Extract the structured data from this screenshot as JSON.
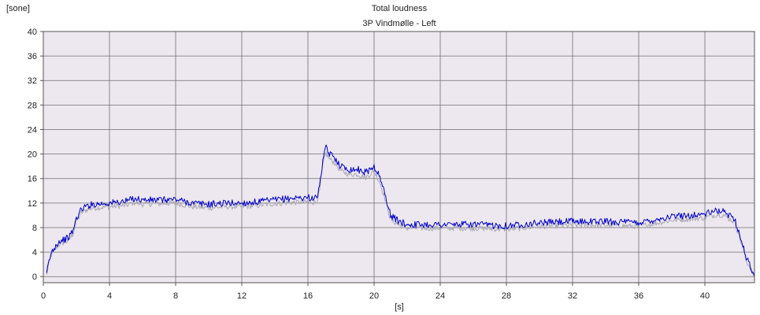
{
  "chart_data": {
    "type": "line",
    "title": "Total loudness",
    "subtitle": "3P Vindmølle - Left",
    "ylabel": "[sone]",
    "xlabel": "[s]",
    "xlim": [
      0,
      43
    ],
    "ylim": [
      -1,
      40
    ],
    "x_ticks": [
      0,
      4,
      8,
      12,
      16,
      20,
      24,
      28,
      32,
      36,
      40
    ],
    "y_ticks": [
      0,
      4,
      8,
      12,
      16,
      20,
      24,
      28,
      32,
      36,
      40
    ],
    "grid": true,
    "plot_background": "#ede8ef",
    "series": [
      {
        "color": "#0000cc",
        "x": [
          0.2,
          0.3,
          0.5,
          0.8,
          1.0,
          1.5,
          1.8,
          2.0,
          2.3,
          2.6,
          3.0,
          4.0,
          5.0,
          5.5,
          6.0,
          7.0,
          8.0,
          9.0,
          10.0,
          11.0,
          12.0,
          13.0,
          14.0,
          15.0,
          16.0,
          16.5,
          16.7,
          16.9,
          17.1,
          17.3,
          17.6,
          18.0,
          18.5,
          19.0,
          19.5,
          20.0,
          20.3,
          20.6,
          21.0,
          21.5,
          22.0,
          23.0,
          24.0,
          26.0,
          28.0,
          30.0,
          32.0,
          34.0,
          36.0,
          38.0,
          39.0,
          40.0,
          40.8,
          41.2,
          41.8,
          42.2,
          42.5,
          42.8,
          43.0
        ],
        "values": [
          0.5,
          2.0,
          4.0,
          5.3,
          5.8,
          6.3,
          7.5,
          9.5,
          11.0,
          11.5,
          11.8,
          12.0,
          12.3,
          12.8,
          12.5,
          12.5,
          12.6,
          12.0,
          11.8,
          12.0,
          12.0,
          12.2,
          12.5,
          12.8,
          12.9,
          12.8,
          14.5,
          19.0,
          21.0,
          20.0,
          19.5,
          18.0,
          17.5,
          17.5,
          17.0,
          18.0,
          16.5,
          14.0,
          10.0,
          9.0,
          8.5,
          8.5,
          8.5,
          8.5,
          8.3,
          8.8,
          9.0,
          9.0,
          8.8,
          9.8,
          10.0,
          10.2,
          10.8,
          10.5,
          9.5,
          6.0,
          3.0,
          1.5,
          0.0
        ]
      },
      {
        "color": "#a8a8b4",
        "x": [
          0.2,
          0.3,
          0.5,
          0.8,
          1.0,
          1.5,
          1.8,
          2.0,
          2.3,
          2.6,
          3.0,
          4.0,
          5.0,
          5.5,
          6.0,
          7.0,
          8.0,
          9.0,
          10.0,
          11.0,
          12.0,
          13.0,
          14.0,
          15.0,
          16.0,
          16.5,
          16.7,
          16.9,
          17.1,
          17.3,
          17.6,
          18.0,
          18.5,
          19.0,
          19.5,
          20.0,
          20.3,
          20.6,
          21.0,
          21.5,
          22.0,
          23.0,
          24.0,
          26.0,
          28.0,
          30.0,
          32.0,
          34.0,
          36.0,
          38.0,
          39.0,
          40.0,
          40.8,
          41.2,
          41.8,
          42.2,
          42.5,
          42.8,
          43.0
        ],
        "values": [
          0.3,
          1.7,
          3.6,
          4.8,
          5.3,
          5.8,
          7.0,
          9.0,
          10.4,
          10.9,
          11.2,
          11.4,
          11.6,
          12.1,
          11.8,
          11.9,
          12.0,
          11.4,
          11.2,
          11.4,
          11.4,
          11.6,
          11.9,
          12.1,
          12.2,
          12.1,
          13.8,
          18.2,
          20.1,
          19.2,
          18.6,
          17.2,
          16.7,
          16.7,
          16.2,
          17.2,
          15.7,
          13.3,
          9.3,
          8.4,
          7.9,
          7.9,
          7.9,
          7.9,
          7.7,
          8.2,
          8.4,
          8.4,
          8.2,
          9.2,
          9.4,
          9.6,
          10.2,
          9.9,
          8.9,
          5.5,
          2.6,
          1.2,
          -0.2
        ]
      }
    ]
  }
}
